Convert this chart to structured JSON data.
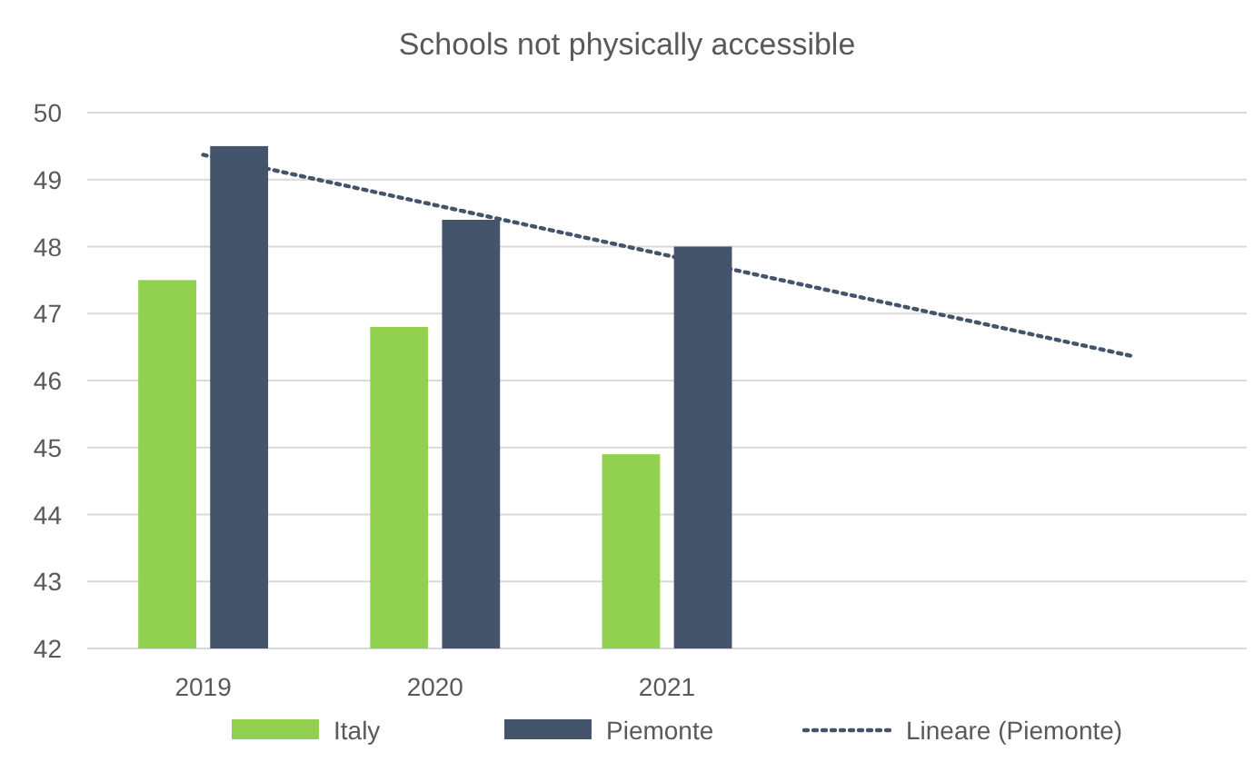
{
  "chart_data": {
    "type": "bar",
    "title": "Schools not physically accessible",
    "categories": [
      "2019",
      "2020",
      "2021",
      null,
      null
    ],
    "series": [
      {
        "name": "Italy",
        "color": "#92d050",
        "values": [
          47.5,
          46.8,
          44.9,
          null,
          null
        ]
      },
      {
        "name": "Piemonte",
        "color": "#44546a",
        "values": [
          49.5,
          48.4,
          48.0,
          null,
          null
        ]
      },
      {
        "name": "Lineare (Piemonte)",
        "type": "line",
        "color": "#44546a",
        "line_style": "dotted",
        "marker": "none",
        "values": [
          49.37,
          48.62,
          47.87,
          47.12,
          46.37
        ]
      }
    ],
    "ylim": [
      42,
      50
    ],
    "yticks": [
      42,
      43,
      44,
      45,
      46,
      47,
      48,
      49,
      50
    ],
    "grid": "y",
    "legend": "bottom"
  }
}
